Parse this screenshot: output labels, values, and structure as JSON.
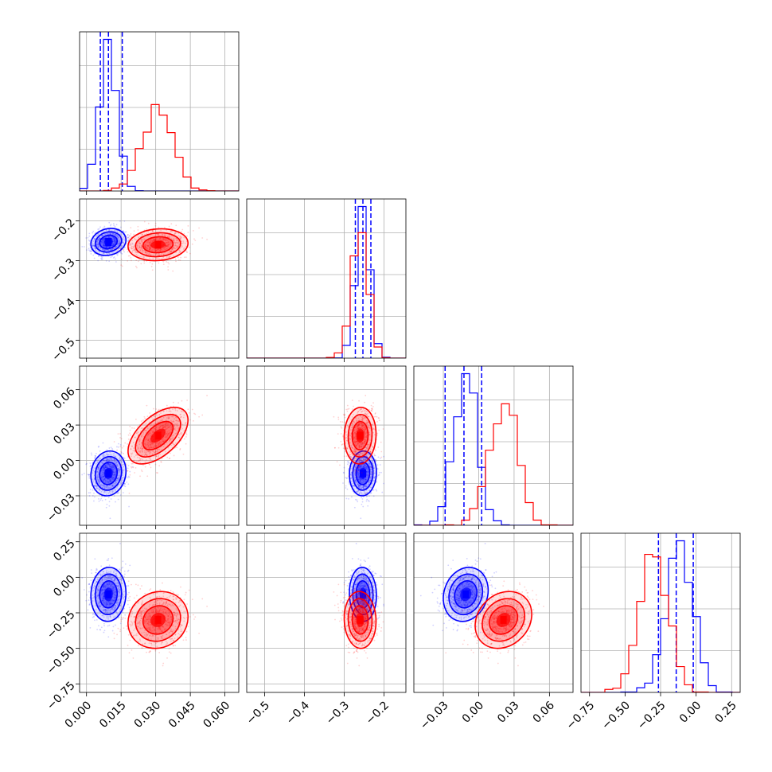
{
  "chart_data": {
    "type": "corner",
    "title": "",
    "parameters": [
      "",
      "",
      "",
      ""
    ],
    "axis_ranges": [
      [
        -0.003,
        0.066
      ],
      [
        -0.545,
        -0.145
      ],
      [
        -0.055,
        0.08
      ],
      [
        -0.81,
        0.31
      ]
    ],
    "ticks": [
      {
        "values": [
          0.0,
          0.015,
          0.03,
          0.045,
          0.06
        ],
        "labels": [
          "0.000",
          "0.015",
          "0.030",
          "0.045",
          "0.060"
        ]
      },
      {
        "values": [
          -0.5,
          -0.4,
          -0.3,
          -0.2
        ],
        "labels": [
          "−0.5",
          "−0.4",
          "−0.3",
          "−0.2"
        ]
      },
      {
        "values": [
          -0.03,
          0.0,
          0.03,
          0.06
        ],
        "labels": [
          "−0.03",
          "0.00",
          "0.03",
          "0.06"
        ]
      },
      {
        "values": [
          -0.75,
          -0.5,
          -0.25,
          0.0,
          0.25
        ],
        "labels": [
          "−0.75",
          "−0.50",
          "−0.25",
          "0.00",
          "0.25"
        ]
      }
    ],
    "grid": true,
    "series": [
      {
        "color": "#0000ff",
        "mean": [
          0.0095,
          -0.253,
          -0.011,
          -0.12
        ],
        "sd": [
          0.0038,
          0.017,
          0.0095,
          0.095
        ],
        "corr": [
          [
            1,
            0.15,
            0.1,
            0.05
          ],
          [
            0.15,
            1,
            0.05,
            -0.05
          ],
          [
            0.1,
            0.05,
            1,
            0.15
          ],
          [
            0.05,
            -0.05,
            0.15,
            1
          ]
        ],
        "quantiles": [
          [
            0.006,
            0.0095,
            0.0155
          ],
          [
            -0.272,
            -0.253,
            -0.233
          ],
          [
            -0.0285,
            -0.0125,
            0.0025
          ],
          [
            -0.265,
            -0.14,
            -0.02
          ]
        ]
      },
      {
        "color": "#ff0000",
        "mean": [
          0.031,
          -0.26,
          0.021,
          -0.3
        ],
        "sd": [
          0.0065,
          0.02,
          0.012,
          0.1
        ],
        "corr": [
          [
            1,
            0.1,
            0.55,
            0.1
          ],
          [
            0.1,
            1,
            0.05,
            -0.05
          ],
          [
            0.55,
            0.05,
            1,
            0.2
          ],
          [
            0.1,
            -0.05,
            0.2,
            1
          ]
        ],
        "quantiles": []
      }
    ]
  }
}
